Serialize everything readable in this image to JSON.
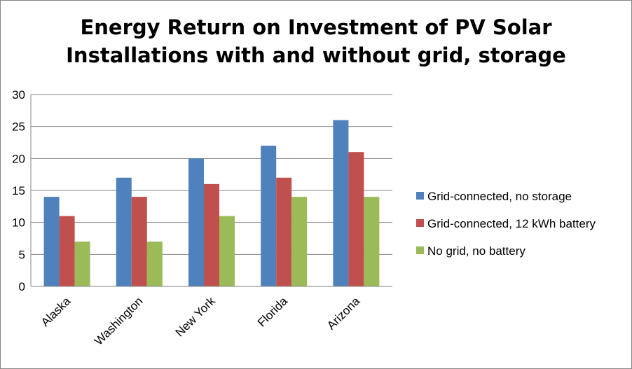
{
  "chart_data": {
    "type": "bar",
    "title_lines": [
      "Energy Return on Investment of PV Solar",
      "Installations with and without grid, storage"
    ],
    "categories": [
      "Alaska",
      "Washington",
      "New York",
      "Florida",
      "Arizona"
    ],
    "series": [
      {
        "name": "Grid-connected, no storage",
        "color": "#4F81BD",
        "values": [
          14,
          17,
          20,
          22,
          26
        ]
      },
      {
        "name": "Grid-connected, 12 kWh battery",
        "color": "#C0504D",
        "values": [
          11,
          14,
          16,
          17,
          21
        ]
      },
      {
        "name": "No grid, no battery",
        "color": "#9BBB59",
        "values": [
          7,
          7,
          11,
          14,
          14
        ]
      }
    ],
    "ylim": [
      0,
      30
    ],
    "yticks": [
      0,
      5,
      10,
      15,
      20,
      25,
      30
    ],
    "grid": true,
    "legend_position": "right",
    "xlabel": "",
    "ylabel": ""
  }
}
